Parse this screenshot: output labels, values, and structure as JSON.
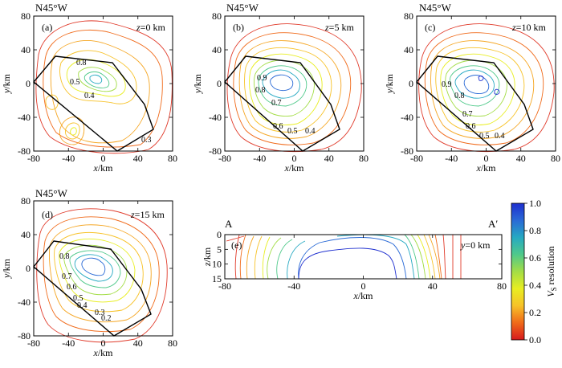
{
  "figure": {
    "colorbar": {
      "label": "V",
      "label_sub": "S",
      "label_rest": " resolution",
      "ticks": [
        "0.0",
        "0.2",
        "0.4",
        "0.6",
        "0.8",
        "1.0"
      ],
      "range": [
        0.0,
        1.0
      ],
      "colors": [
        "#d7191c",
        "#f06a1a",
        "#f7c228",
        "#e8ee22",
        "#a3dd46",
        "#4fc98a",
        "#26a9c2",
        "#2a6ad6",
        "#1e2fcf"
      ]
    }
  },
  "chart_data": [
    {
      "id": "a",
      "type": "contour",
      "panel_label": "(a)",
      "direction": "N45°W",
      "depth_label_var": "z",
      "depth_label": "=0 km",
      "xlabel_var": "x",
      "xlabel_unit": "/km",
      "ylabel_var": "y",
      "ylabel_unit": "/km",
      "xlim": [
        -80,
        80
      ],
      "ylim": [
        -80,
        80
      ],
      "xticks": [
        "-80",
        "-40",
        "0",
        "40",
        "80"
      ],
      "yticks": [
        "80",
        "40",
        "0",
        "-40",
        "-80"
      ],
      "contour_labels": [
        "0.8",
        "0.5",
        "0.4",
        "0.3"
      ],
      "contour_levels": [
        0.1,
        0.2,
        0.3,
        0.4,
        0.5,
        0.6,
        0.7,
        0.8,
        0.9
      ],
      "polygon": [
        [
          -57,
          32
        ],
        [
          5,
          25
        ],
        [
          40,
          -20
        ],
        [
          50,
          -50
        ],
        [
          12,
          -75
        ],
        [
          -85,
          -5
        ]
      ]
    },
    {
      "id": "b",
      "type": "contour",
      "panel_label": "(b)",
      "direction": "N45°W",
      "depth_label_var": "z",
      "depth_label": "=5 km",
      "xlabel_var": "x",
      "xlabel_unit": "/km",
      "ylabel_var": "y",
      "ylabel_unit": "/km",
      "xlim": [
        -80,
        80
      ],
      "ylim": [
        -80,
        80
      ],
      "xticks": [
        "-80",
        "-40",
        "0",
        "40",
        "80"
      ],
      "yticks": [
        "80",
        "40",
        "0",
        "-40",
        "-80"
      ],
      "contour_labels": [
        "0.9",
        "0.8",
        "0.7",
        "0.6",
        "0.5",
        "0.4"
      ],
      "contour_levels": [
        0.1,
        0.2,
        0.3,
        0.4,
        0.5,
        0.6,
        0.7,
        0.8,
        0.9
      ],
      "polygon": [
        [
          -57,
          32
        ],
        [
          5,
          25
        ],
        [
          40,
          -20
        ],
        [
          50,
          -50
        ],
        [
          12,
          -75
        ],
        [
          -85,
          -5
        ]
      ]
    },
    {
      "id": "c",
      "type": "contour",
      "panel_label": "(c)",
      "direction": "N45°W",
      "depth_label_var": "z",
      "depth_label": "=10 km",
      "xlabel_var": "x",
      "xlabel_unit": "/km",
      "ylabel_var": "y",
      "ylabel_unit": "/km",
      "xlim": [
        -80,
        80
      ],
      "ylim": [
        -80,
        80
      ],
      "xticks": [
        "-80",
        "-40",
        "0",
        "40",
        "80"
      ],
      "yticks": [
        "80",
        "40",
        "0",
        "-40",
        "-80"
      ],
      "contour_labels": [
        "0.9",
        "0.8",
        "0.7",
        "0.6",
        "0.5",
        "0.4"
      ],
      "contour_levels": [
        0.1,
        0.2,
        0.3,
        0.4,
        0.5,
        0.6,
        0.7,
        0.8,
        0.9
      ],
      "polygon": [
        [
          -57,
          32
        ],
        [
          5,
          25
        ],
        [
          40,
          -20
        ],
        [
          50,
          -50
        ],
        [
          12,
          -75
        ],
        [
          -85,
          -5
        ]
      ]
    },
    {
      "id": "d",
      "type": "contour",
      "panel_label": "(d)",
      "direction": "N45°W",
      "depth_label_var": "z",
      "depth_label": "=15 km",
      "xlabel_var": "x",
      "xlabel_unit": "/km",
      "ylabel_var": "y",
      "ylabel_unit": "/km",
      "xlim": [
        -80,
        80
      ],
      "ylim": [
        -80,
        80
      ],
      "xticks": [
        "-80",
        "-40",
        "0",
        "40",
        "80"
      ],
      "yticks": [
        "80",
        "40",
        "0",
        "-40",
        "-80"
      ],
      "contour_labels": [
        "0.8",
        "0.7",
        "0.6",
        "0.5",
        "0.4",
        "0.3",
        "0.2"
      ],
      "contour_levels": [
        0.1,
        0.2,
        0.3,
        0.4,
        0.5,
        0.6,
        0.7,
        0.8,
        0.9
      ],
      "polygon": [
        [
          -57,
          32
        ],
        [
          5,
          25
        ],
        [
          40,
          -20
        ],
        [
          50,
          -50
        ],
        [
          12,
          -75
        ],
        [
          -85,
          -5
        ]
      ]
    },
    {
      "id": "e",
      "type": "contour",
      "panel_label": "(e)",
      "profile_start": "A",
      "profile_end": "A′",
      "depth_label_var": "y",
      "depth_label": "=0 km",
      "xlabel_var": "x",
      "xlabel_unit": "/km",
      "ylabel_var": "z",
      "ylabel_unit": "/km",
      "xlim": [
        -80,
        80
      ],
      "ylim": [
        0,
        15
      ],
      "xticks": [
        "-80",
        "-40",
        "0",
        "40",
        "80"
      ],
      "yticks": [
        "0",
        "5",
        "10",
        "15"
      ],
      "contour_levels": [
        0.1,
        0.2,
        0.3,
        0.4,
        0.5,
        0.6,
        0.7,
        0.8,
        0.9
      ]
    }
  ]
}
